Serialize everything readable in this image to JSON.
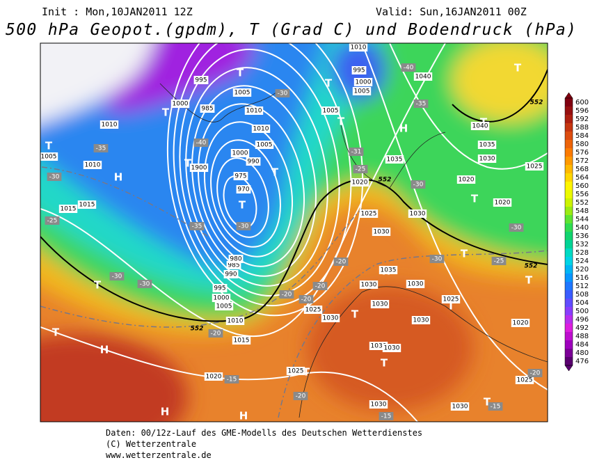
{
  "header": {
    "init": "Init : Mon,10JAN2011 12Z",
    "valid": "Valid: Sun,16JAN2011 00Z",
    "title": "500 hPa Geopot.(gpdm), T (Grad C) und Bodendruck (hPa)"
  },
  "map_labels": {
    "highs_lows": [
      "T",
      "T",
      "T",
      "T",
      "T",
      "T",
      "T",
      "T",
      "T",
      "T",
      "T",
      "T",
      "T",
      "T",
      "T",
      "T",
      "T",
      "T",
      "T",
      "T",
      "H",
      "H",
      "H",
      "H",
      "H",
      "H"
    ],
    "isolines": [
      "1010",
      "995",
      "1000",
      "1005",
      "1040",
      "-40",
      "-35",
      "995",
      "1000",
      "985",
      "1005",
      "-30",
      "1010",
      "1005",
      "1010",
      "1010",
      "-40",
      "1000",
      "990",
      "1005",
      "975",
      "970",
      "-30",
      "-35",
      "1900",
      "1010",
      "1005",
      "-35",
      "-30",
      "1015",
      "1015",
      "-25",
      "-25",
      "1020",
      "1035",
      "-31",
      "1025",
      "1030",
      "1030",
      "-30",
      "1020",
      "1030",
      "1035",
      "1040",
      "1025",
      "1020",
      "-30",
      "-25",
      "-30",
      "1030",
      "1030",
      "1035",
      "-20",
      "-20",
      "-20",
      "-20",
      "1025",
      "1030",
      "1030",
      "1030",
      "1025",
      "1020",
      "1030",
      "1030",
      "1025",
      "1030",
      "-15",
      "1030",
      "1025",
      "-20",
      "-15",
      "1020",
      "-15",
      "1015",
      "-20",
      "1010",
      "1005",
      "1000",
      "995",
      "990",
      "985",
      "980",
      "-30",
      "-30",
      "-20"
    ],
    "geopot": [
      "552",
      "552",
      "552",
      "552"
    ]
  },
  "legend": {
    "values": [
      600,
      596,
      592,
      588,
      584,
      580,
      576,
      572,
      568,
      564,
      560,
      556,
      552,
      548,
      544,
      540,
      536,
      532,
      528,
      524,
      520,
      516,
      512,
      508,
      504,
      500,
      496,
      492,
      488,
      484,
      480,
      476
    ]
  },
  "footer": [
    "Daten: 00/12z-Lauf des GME-Modells des Deutschen Wetterdienstes",
    "(C) Wetterzentrale",
    "www.wetterzentrale.de"
  ]
}
